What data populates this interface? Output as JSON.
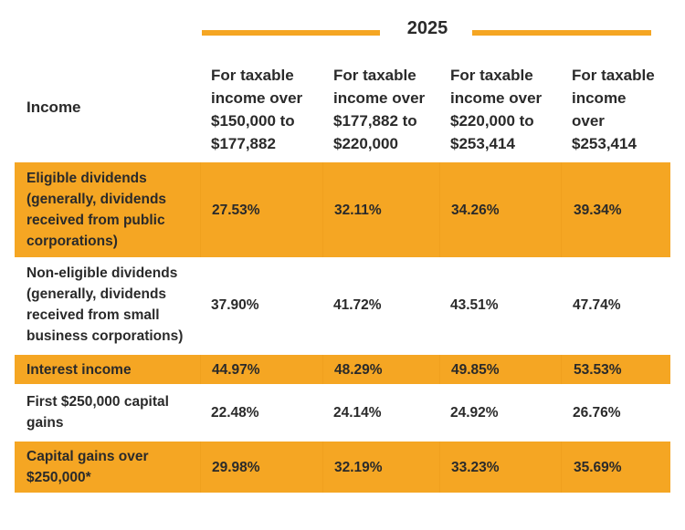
{
  "year": "2025",
  "accent_color": "#f5a623",
  "header": {
    "income_label": "Income",
    "columns": [
      [
        "For taxable",
        "income over",
        "$150,000 to",
        "$177,882"
      ],
      [
        "For taxable",
        "income over",
        "$177,882 to",
        "$220,000"
      ],
      [
        "For taxable",
        "income over",
        "$220,000 to",
        "$253,414"
      ],
      [
        "For taxable",
        "income",
        "over",
        "$253,414"
      ]
    ]
  },
  "rows": [
    {
      "label": "Eligible dividends (generally, dividends received from public corporations)",
      "values": [
        "27.53%",
        "32.11%",
        "34.26%",
        "39.34%"
      ]
    },
    {
      "label": "Non-eligible dividends (generally, dividends received from small business corporations)",
      "values": [
        "37.90%",
        "41.72%",
        "43.51%",
        "47.74%"
      ]
    },
    {
      "label": "Interest income",
      "values": [
        "44.97%",
        "48.29%",
        "49.85%",
        "53.53%"
      ]
    },
    {
      "label": "First $250,000 capital gains",
      "values": [
        "22.48%",
        "24.14%",
        "24.92%",
        "26.76%"
      ]
    },
    {
      "label": "Capital gains over $250,000*",
      "values": [
        "29.98%",
        "32.19%",
        "33.23%",
        "35.69%"
      ]
    }
  ]
}
